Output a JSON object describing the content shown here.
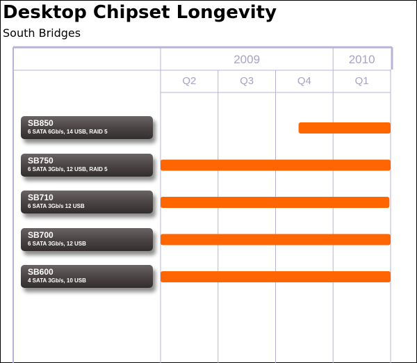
{
  "header": {
    "title": "Desktop Chipset Longevity",
    "subtitle": "South Bridges"
  },
  "colors": {
    "bar": "#ff6600",
    "grid": "#b8b3d6",
    "axis_text": "#a7a3c4",
    "label_box": "#4e4747"
  },
  "chart_data": {
    "type": "gantt",
    "years": [
      {
        "label": "2009",
        "span": [
          "Q2",
          "Q4"
        ]
      },
      {
        "label": "2010",
        "span": [
          "Q1",
          "Q1"
        ]
      }
    ],
    "quarters": [
      "Q2",
      "Q3",
      "Q4",
      "Q1"
    ],
    "x_range": [
      0,
      4
    ],
    "rows": [
      {
        "name": "SB850",
        "spec": "6 SATA 6Gb/s, 14 USB, RAID 5",
        "start": 2.4,
        "end": 4.0
      },
      {
        "name": "SB750",
        "spec": "6 SATA 3Gb/s, 12 USB, RAID 5",
        "start": 0.0,
        "end": 4.0
      },
      {
        "name": "SB710",
        "spec": "6 SATA 3Gb/s 12 USB",
        "start": 0.0,
        "end": 3.98
      },
      {
        "name": "SB700",
        "spec": "6 SATA 3Gb/s, 12 USB",
        "start": 0.0,
        "end": 4.0
      },
      {
        "name": "SB600",
        "spec": "4 SATA 3Gb/s, 10 USB",
        "start": 0.0,
        "end": 4.0
      }
    ]
  }
}
